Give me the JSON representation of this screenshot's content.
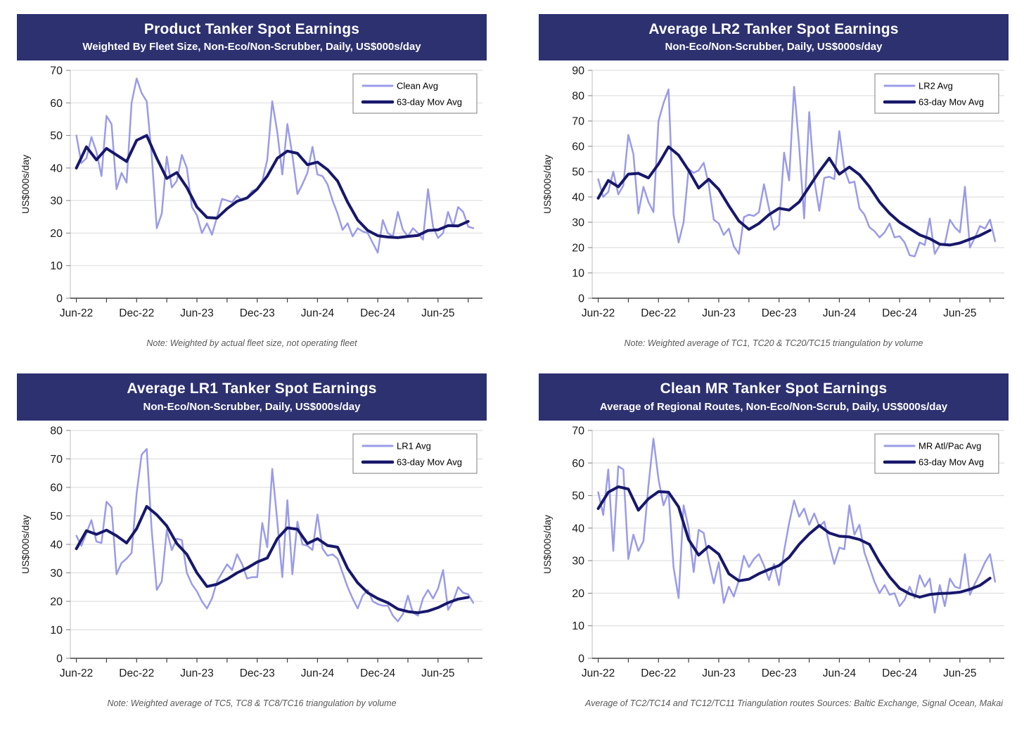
{
  "ui": {
    "y_axis_label": "US$000s/day",
    "colors": {
      "banner_bg": "#2d3170",
      "daily_line": "#9b9be8",
      "mov_avg_line": "#17176b",
      "gridline": "#d9d9d9",
      "axis": "#404040",
      "note_text": "#595959"
    }
  },
  "charts": [
    {
      "title": "Product Tanker Spot Earnings",
      "subtitle": "Weighted By Fleet Size, Non-Eco/Non-Scrubber, Daily, US$000s/day",
      "note": "Note: Weighted by actual fleet size, not operating fleet",
      "chart_data": {
        "type": "line",
        "ylabel": "US$000s/day",
        "ylim": [
          0,
          70
        ],
        "ytick_step": 10,
        "xlim": [
          -0.6,
          40
        ],
        "x_minor_tick_every_months": 3,
        "x_labeled_months": [
          0,
          6,
          12,
          18,
          24,
          30,
          36
        ],
        "x_tick_labels": [
          "Jun-22",
          "Dec-22",
          "Jun-23",
          "Dec-23",
          "Jun-24",
          "Dec-24",
          "Jun-25"
        ],
        "grid": true,
        "legend_position": "top-right",
        "series": [
          {
            "name": "Clean Avg",
            "color": "#9b9be8",
            "width": 2.5,
            "x0": 0,
            "dx": 0.5,
            "values": [
              50,
              41.5,
              43,
              49.5,
              45,
              37.5,
              56,
              53.5,
              33.5,
              38.5,
              35.5,
              60,
              67.5,
              63,
              60.5,
              44,
              21.5,
              26,
              43.5,
              34,
              36,
              44,
              40,
              28,
              25.5,
              20,
              23,
              19.5,
              25,
              30.5,
              30,
              29.5,
              31.5,
              30,
              31,
              33,
              33.5,
              36,
              42.5,
              60.5,
              51,
              38,
              53.5,
              44,
              32,
              35,
              38.5,
              46.5,
              38,
              37.5,
              35,
              30,
              26,
              21,
              23,
              19,
              21.5,
              20.5,
              20,
              17,
              14,
              24,
              20,
              19,
              26.5,
              21,
              19,
              21.5,
              20,
              18,
              33.5,
              22,
              18.5,
              20,
              26.5,
              22,
              28,
              26.5,
              22,
              21.5
            ]
          },
          {
            "name": "63-day Mov Avg",
            "color": "#17176b",
            "width": 4,
            "x0": 0,
            "dx": 1,
            "values": [
              40,
              46.5,
              42.5,
              46,
              44,
              42,
              48.5,
              50,
              43,
              36.8,
              38.6,
              34,
              28,
              24.8,
              24.6,
              27.5,
              29.8,
              30.8,
              33.5,
              37.5,
              43,
              45.2,
              44.5,
              41,
              41.8,
              39.5,
              36,
              29.5,
              24,
              20.8,
              19.2,
              18.8,
              18.6,
              19,
              19.3,
              20.8,
              21,
              22.3,
              22.2,
              23.6
            ]
          }
        ]
      }
    },
    {
      "title": "Average LR2 Tanker Spot Earnings",
      "subtitle": "Non-Eco/Non-Scrubber, Daily, US$000s/day",
      "note": "Note: Weighted average of TC1, TC20 & TC20/TC15 triangulation by volume",
      "chart_data": {
        "type": "line",
        "ylabel": "US$000s/day",
        "ylim": [
          0,
          90
        ],
        "ytick_step": 10,
        "xlim": [
          -0.6,
          40
        ],
        "x_minor_tick_every_months": 3,
        "x_labeled_months": [
          0,
          6,
          12,
          18,
          24,
          30,
          36
        ],
        "x_tick_labels": [
          "Jun-22",
          "Dec-22",
          "Jun-23",
          "Dec-23",
          "Jun-24",
          "Dec-24",
          "Jun-25"
        ],
        "grid": true,
        "legend_position": "top-right",
        "series": [
          {
            "name": "LR2 Avg",
            "color": "#9b9be8",
            "width": 2.5,
            "x0": 0,
            "dx": 0.5,
            "values": [
              47,
              40,
              42,
              50,
              41,
              44.5,
              64.5,
              57,
              33.5,
              44,
              38,
              34,
              70,
              77,
              82.5,
              33,
              22,
              30,
              51,
              49.5,
              50.5,
              53.5,
              45,
              31,
              29.5,
              25,
              27.5,
              20.5,
              17.5,
              32,
              33,
              32.5,
              34,
              45,
              35.5,
              27,
              29,
              57.5,
              46.5,
              83.5,
              60,
              31.5,
              73.5,
              47,
              34.5,
              47.5,
              48,
              47,
              66,
              51,
              45.5,
              46,
              35.5,
              33,
              28,
              26.5,
              24,
              26,
              29.5,
              24,
              24.5,
              22,
              17,
              16.5,
              22,
              21,
              31.5,
              17.5,
              21,
              21.5,
              31,
              28,
              26,
              44,
              20,
              24,
              28.5,
              27.5,
              31,
              22.5
            ]
          },
          {
            "name": "63-day Mov Avg",
            "color": "#17176b",
            "width": 4,
            "x0": 0,
            "dx": 1,
            "values": [
              39.5,
              46.5,
              44,
              49,
              49.3,
              47.5,
              53,
              59.8,
              56.5,
              50.5,
              43.5,
              47,
              43,
              36.5,
              30.5,
              27.2,
              29.5,
              33,
              35.5,
              34.8,
              38,
              44,
              50,
              55.3,
              49,
              51.8,
              48.8,
              44,
              38,
              33.5,
              30,
              27.5,
              25,
              23.5,
              21.3,
              21,
              21.8,
              23.3,
              24.8,
              26.8
            ]
          }
        ]
      }
    },
    {
      "title": "Average LR1 Tanker Spot Earnings",
      "subtitle": "Non-Eco/Non-Scrubber, Daily, US$000s/day",
      "note": "Note: Weighted average of TC5, TC8 & TC8/TC16 triangulation by volume",
      "chart_data": {
        "type": "line",
        "ylabel": "US$000s/day",
        "ylim": [
          0,
          80
        ],
        "ytick_step": 10,
        "xlim": [
          -0.6,
          40
        ],
        "x_minor_tick_every_months": 3,
        "x_labeled_months": [
          0,
          6,
          12,
          18,
          24,
          30,
          36
        ],
        "x_tick_labels": [
          "Jun-22",
          "Dec-22",
          "Jun-23",
          "Dec-23",
          "Jun-24",
          "Dec-24",
          "Jun-25"
        ],
        "grid": true,
        "legend_position": "top-right",
        "series": [
          {
            "name": "LR1 Avg",
            "color": "#9b9be8",
            "width": 2.5,
            "x0": 0,
            "dx": 0.5,
            "values": [
              43,
              39.5,
              44,
              48.5,
              41,
              40.5,
              55,
              53,
              29.5,
              33.5,
              35,
              37,
              58,
              71.5,
              73.5,
              45,
              24,
              27,
              45,
              38,
              42,
              41.5,
              30,
              26,
              23.5,
              20,
              17.5,
              21,
              27,
              30,
              33,
              31,
              36.5,
              33,
              28,
              28.5,
              28.5,
              47.5,
              39,
              66.5,
              48,
              28.5,
              55.5,
              29.5,
              48,
              40,
              39.5,
              38,
              50.5,
              38.5,
              36,
              36.5,
              35,
              30,
              25,
              21,
              17.5,
              22,
              24,
              20,
              19,
              18.5,
              18.5,
              15,
              13,
              15.5,
              22,
              16,
              15,
              21,
              24,
              21,
              24.5,
              31,
              17,
              20,
              25,
              23,
              22.5,
              19.5
            ]
          },
          {
            "name": "63-day Mov Avg",
            "color": "#17176b",
            "width": 4,
            "x0": 0,
            "dx": 1,
            "values": [
              38.5,
              44.8,
              43.5,
              45,
              43,
              40.5,
              45.5,
              53.3,
              50.4,
              46.5,
              40.3,
              36.5,
              30,
              25.2,
              26,
              27.8,
              30,
              31.7,
              33.8,
              35.2,
              42,
              45.8,
              45.3,
              40.3,
              42,
              39.6,
              39,
              31.5,
              26.5,
              23,
              21,
              19.5,
              17.3,
              16.4,
              16,
              16.6,
              17.8,
              19.5,
              20.8,
              21.4
            ]
          }
        ]
      }
    },
    {
      "title": "Clean MR Tanker Spot Earnings",
      "subtitle": "Average of Regional Routes, Non-Eco/Non-Scrub, Daily, US$000s/day",
      "note": "Average of TC2/TC14 and TC12/TC11 Triangulation routes",
      "sources": "Sources: Baltic Exchange, Signal Ocean, Makai",
      "chart_data": {
        "type": "line",
        "ylabel": "US$000s/day",
        "ylim": [
          0,
          70
        ],
        "ytick_step": 10,
        "xlim": [
          -0.6,
          40
        ],
        "x_minor_tick_every_months": 3,
        "x_labeled_months": [
          0,
          6,
          12,
          18,
          24,
          30,
          36
        ],
        "x_tick_labels": [
          "Jun-22",
          "Dec-22",
          "Jun-23",
          "Dec-23",
          "Jun-24",
          "Dec-24",
          "Jun-25"
        ],
        "grid": true,
        "legend_position": "top-right",
        "series": [
          {
            "name": "MR Atl/Pac Avg",
            "color": "#9b9be8",
            "width": 2.5,
            "x0": 0,
            "dx": 0.5,
            "values": [
              51,
              44,
              58,
              33,
              59,
              58,
              30.5,
              38,
              33,
              36,
              53,
              67.5,
              55,
              47,
              51,
              28,
              18.5,
              47,
              40,
              26.5,
              39.5,
              38.5,
              30,
              23,
              29.5,
              17,
              22,
              19,
              24,
              31.5,
              28,
              30.5,
              32,
              28.5,
              24,
              29,
              22.5,
              33,
              41.5,
              48.5,
              43.5,
              46,
              41,
              44.5,
              40.5,
              42,
              35,
              29,
              34,
              33.5,
              47,
              38,
              41,
              32.5,
              28,
              23.5,
              20,
              22.5,
              19.5,
              20,
              16,
              18,
              22,
              18.5,
              25.5,
              22,
              24.5,
              14,
              22.5,
              16,
              24.5,
              22,
              21.5,
              32,
              19.5,
              23,
              26,
              29.5,
              32,
              23.5
            ]
          },
          {
            "name": "63-day Mov Avg",
            "color": "#17176b",
            "width": 4,
            "x0": 0,
            "dx": 1,
            "values": [
              46,
              51,
              52.7,
              52,
              45.5,
              49,
              51.2,
              51,
              46.5,
              36.5,
              31.7,
              34.4,
              32,
              26,
              23.8,
              24.3,
              26,
              27.3,
              28.5,
              31,
              35,
              38.2,
              40.8,
              38.5,
              37.5,
              37.3,
              36.5,
              35,
              29.5,
              25,
              21.5,
              19.8,
              18.8,
              19.6,
              19.9,
              20,
              20.3,
              21.2,
              22.4,
              24.6
            ]
          }
        ]
      }
    }
  ]
}
